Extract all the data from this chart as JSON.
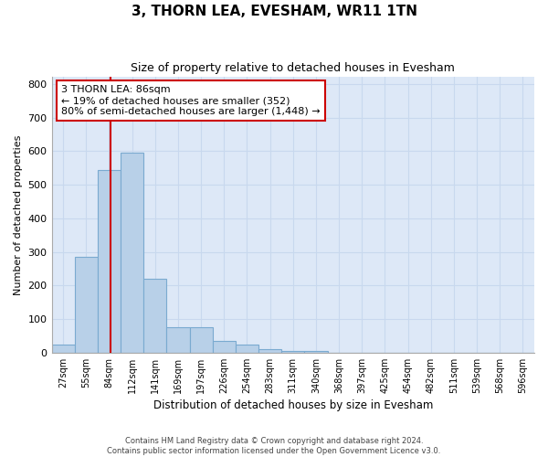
{
  "title": "3, THORN LEA, EVESHAM, WR11 1TN",
  "subtitle": "Size of property relative to detached houses in Evesham",
  "xlabel": "Distribution of detached houses by size in Evesham",
  "ylabel": "Number of detached properties",
  "bins": [
    "27sqm",
    "55sqm",
    "84sqm",
    "112sqm",
    "141sqm",
    "169sqm",
    "197sqm",
    "226sqm",
    "254sqm",
    "283sqm",
    "311sqm",
    "340sqm",
    "368sqm",
    "397sqm",
    "425sqm",
    "454sqm",
    "482sqm",
    "511sqm",
    "539sqm",
    "568sqm",
    "596sqm"
  ],
  "values": [
    25,
    285,
    545,
    595,
    220,
    75,
    75,
    35,
    25,
    10,
    5,
    4,
    0,
    0,
    0,
    0,
    0,
    0,
    0,
    0,
    0
  ],
  "bar_color": "#b8d0e8",
  "bar_edge_color": "#7aaad0",
  "background_color": "#dde8f7",
  "grid_color": "#c8d8ee",
  "property_line_x": 2.07,
  "annotation_text_line1": "3 THORN LEA: 86sqm",
  "annotation_text_line2": "← 19% of detached houses are smaller (352)",
  "annotation_text_line3": "80% of semi-detached houses are larger (1,448) →",
  "annotation_box_facecolor": "#ffffff",
  "annotation_box_edgecolor": "#cc0000",
  "red_line_color": "#cc0000",
  "ylim": [
    0,
    820
  ],
  "yticks": [
    0,
    100,
    200,
    300,
    400,
    500,
    600,
    700,
    800
  ],
  "fig_facecolor": "#ffffff",
  "footer_line1": "Contains HM Land Registry data © Crown copyright and database right 2024.",
  "footer_line2": "Contains public sector information licensed under the Open Government Licence v3.0."
}
